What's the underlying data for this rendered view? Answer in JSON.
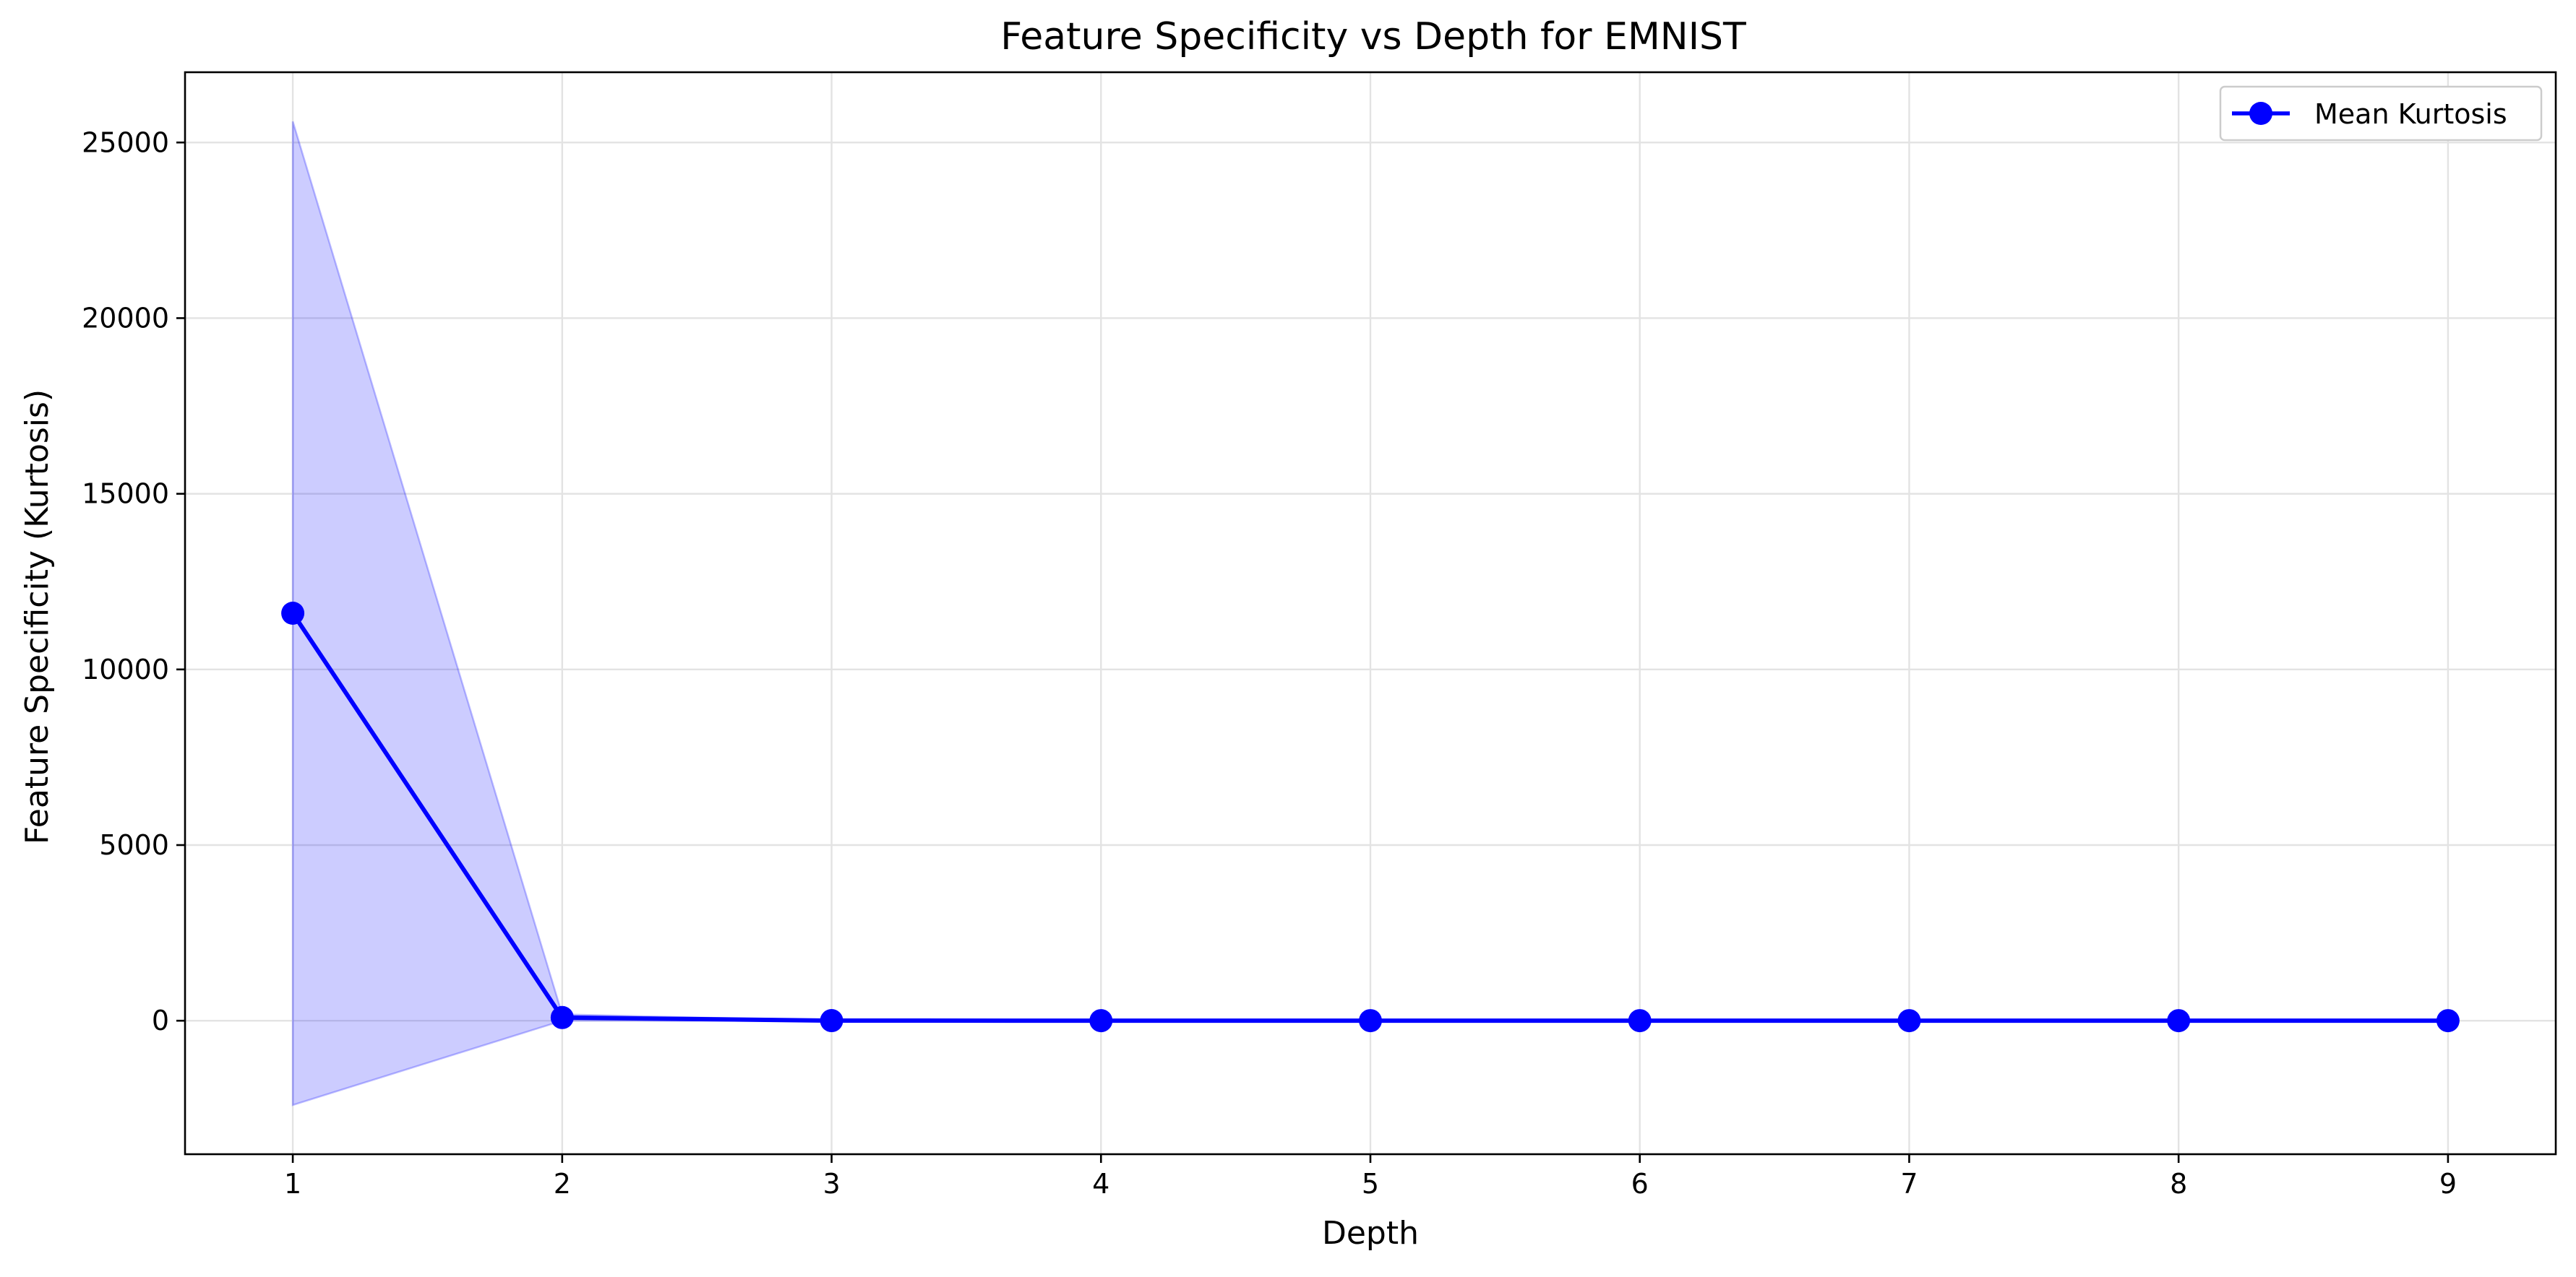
{
  "chart_data": {
    "type": "line",
    "title": "Feature Specificity vs Depth for EMNIST",
    "xlabel": "Depth",
    "ylabel": "Feature Specificity (Kurtosis)",
    "x": [
      1,
      2,
      3,
      4,
      5,
      6,
      7,
      8,
      9
    ],
    "xlim": [
      0.6,
      9.4
    ],
    "ylim": [
      -3800,
      27000
    ],
    "xticks": [
      1,
      2,
      3,
      4,
      5,
      6,
      7,
      8,
      9
    ],
    "yticks": [
      0,
      5000,
      10000,
      15000,
      20000,
      25000
    ],
    "grid": true,
    "legend": {
      "placement": "top-right",
      "entries": [
        "Mean Kurtosis"
      ]
    },
    "series": [
      {
        "name": "Mean Kurtosis",
        "values": [
          11600,
          90,
          3,
          2,
          2,
          2,
          2,
          2,
          2
        ],
        "color": "#0000ff",
        "marker": "circle"
      }
    ],
    "band": {
      "lower": [
        -2400,
        0,
        0,
        0,
        0,
        0,
        0,
        0,
        0
      ],
      "upper": [
        25600,
        180,
        6,
        4,
        4,
        4,
        4,
        4,
        4
      ],
      "color": "#0000ff",
      "opacity": 0.2
    }
  }
}
